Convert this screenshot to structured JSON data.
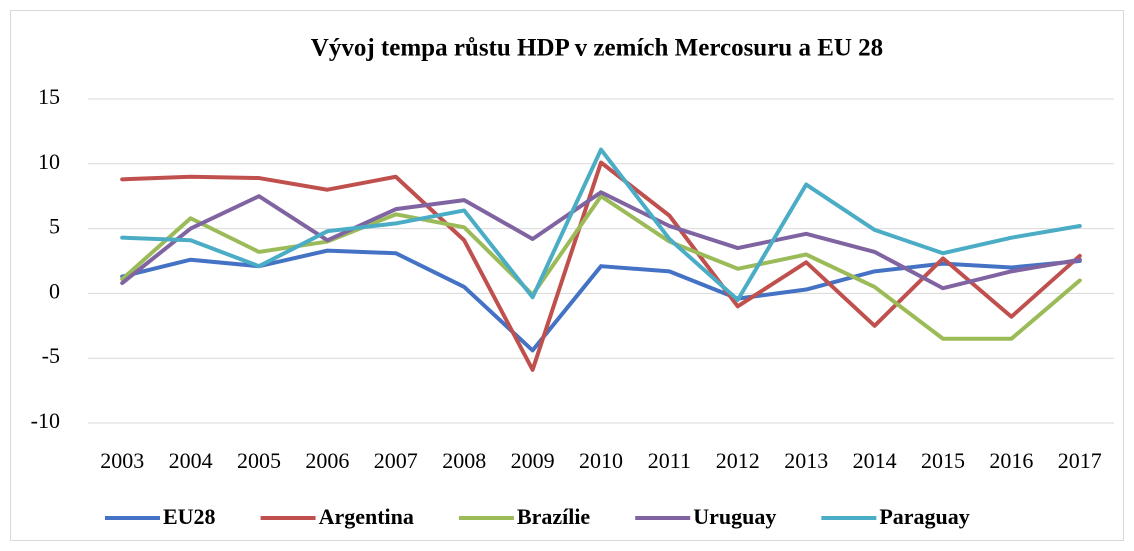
{
  "chart_data": {
    "type": "line",
    "title": "Vývoj tempa růstu HDP v zemích Mercosuru a EU 28",
    "categories": [
      "2003",
      "2004",
      "2005",
      "2006",
      "2007",
      "2008",
      "2009",
      "2010",
      "2011",
      "2012",
      "2013",
      "2014",
      "2015",
      "2016",
      "2017"
    ],
    "series": [
      {
        "name": "EU28",
        "color": "#4472c4",
        "values": [
          1.3,
          2.6,
          2.1,
          3.3,
          3.1,
          0.5,
          -4.4,
          2.1,
          1.7,
          -0.4,
          0.3,
          1.7,
          2.3,
          2.0,
          2.5
        ]
      },
      {
        "name": "Argentina",
        "color": "#c0504d",
        "values": [
          8.8,
          9.0,
          8.9,
          8.0,
          9.0,
          4.1,
          -5.9,
          10.1,
          6.0,
          -1.0,
          2.4,
          -2.5,
          2.7,
          -1.8,
          2.9
        ]
      },
      {
        "name": "Brazílie",
        "color": "#9bbb59",
        "values": [
          1.1,
          5.8,
          3.2,
          4.0,
          6.1,
          5.1,
          -0.1,
          7.5,
          4.0,
          1.9,
          3.0,
          0.5,
          -3.5,
          -3.5,
          1.0
        ]
      },
      {
        "name": "Uruguay",
        "color": "#8064a2",
        "values": [
          0.8,
          5.0,
          7.5,
          4.1,
          6.5,
          7.2,
          4.2,
          7.8,
          5.2,
          3.5,
          4.6,
          3.2,
          0.4,
          1.7,
          2.6
        ]
      },
      {
        "name": "Paraguay",
        "color": "#4bacc6",
        "values": [
          4.3,
          4.1,
          2.1,
          4.8,
          5.4,
          6.4,
          -0.3,
          11.1,
          4.2,
          -0.5,
          8.4,
          4.9,
          3.1,
          4.3,
          5.2
        ]
      }
    ],
    "ylim": [
      -10,
      15
    ],
    "yticks": [
      -10,
      -5,
      0,
      5,
      10,
      15
    ],
    "grid": true,
    "legend": "bottom"
  }
}
